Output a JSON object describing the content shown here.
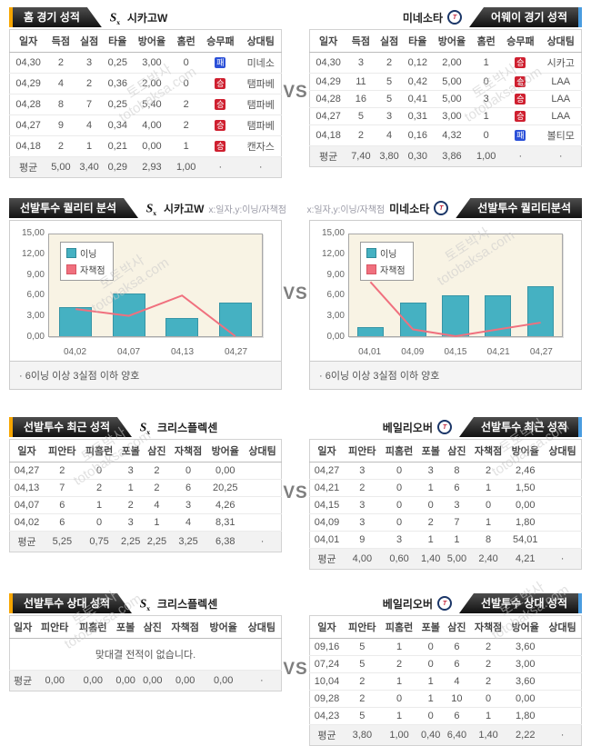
{
  "page": {
    "vs_label": "VS"
  },
  "colors": {
    "accent_left": "#f7a600",
    "accent_right": "#4a9de0",
    "bar": "#45b1c2",
    "line": "#f0707e",
    "win_badge": "#cf2030",
    "loss_badge": "#2b50d8"
  },
  "watermark": {
    "line1": "토토박사",
    "line2": "totobaksa.com"
  },
  "logos": {
    "left": "chicago-whitesox",
    "right": "minnesota-twins",
    "twins_initial": "T"
  },
  "sections": {
    "s1": {
      "left_title": "홈 경기 성적",
      "right_title": "어웨이 경기 성적",
      "left_team": "시카고W",
      "right_team": "미네소타"
    },
    "s2": {
      "left_title": "선발투수 퀄리티 분석",
      "right_title": "선발투수 퀄리티분석",
      "left_team": "시카고W",
      "right_team": "미네소타",
      "axis_caption": "x:일자,y:이닝/자책점",
      "note": "· 6이닝 이상 3실점 이하 양호"
    },
    "s3": {
      "left_title": "선발투수 최근 성적",
      "right_title": "선발투수 최근 성적",
      "left_player": "크리스플렉센",
      "right_player": "베일리오버"
    },
    "s4": {
      "left_title": "선발투수 상대 성적",
      "right_title": "선발투수 상대 성적",
      "left_player": "크리스플렉센",
      "right_player": "베일리오버"
    }
  },
  "tables": {
    "home": {
      "columns": [
        "일자",
        "득점",
        "실점",
        "타율",
        "방어율",
        "홈런",
        "승무패",
        "상대팀"
      ],
      "rows": [
        [
          "04,30",
          "2",
          "3",
          "0,25",
          "3,00",
          "0",
          {
            "b": "패",
            "t": "loss"
          },
          "미네소"
        ],
        [
          "04,29",
          "4",
          "2",
          "0,36",
          "2,00",
          "0",
          {
            "b": "승",
            "t": "win"
          },
          "탬파베"
        ],
        [
          "04,28",
          "8",
          "7",
          "0,25",
          "5,40",
          "2",
          {
            "b": "승",
            "t": "win"
          },
          "탬파베"
        ],
        [
          "04,27",
          "9",
          "4",
          "0,34",
          "4,00",
          "2",
          {
            "b": "승",
            "t": "win"
          },
          "탬파베"
        ],
        [
          "04,18",
          "2",
          "1",
          "0,21",
          "0,00",
          "1",
          {
            "b": "승",
            "t": "win"
          },
          "캔자스"
        ]
      ],
      "avg": [
        "평균",
        "5,00",
        "3,40",
        "0,29",
        "2,93",
        "1,00",
        "·",
        "·"
      ]
    },
    "away": {
      "columns": [
        "일자",
        "득점",
        "실점",
        "타율",
        "방어율",
        "홈런",
        "승무패",
        "상대팀"
      ],
      "rows": [
        [
          "04,30",
          "3",
          "2",
          "0,12",
          "2,00",
          "1",
          {
            "b": "승",
            "t": "win"
          },
          "시카고"
        ],
        [
          "04,29",
          "11",
          "5",
          "0,42",
          "5,00",
          "0",
          {
            "b": "승",
            "t": "win"
          },
          "LAA"
        ],
        [
          "04,28",
          "16",
          "5",
          "0,41",
          "5,00",
          "3",
          {
            "b": "승",
            "t": "win"
          },
          "LAA"
        ],
        [
          "04,27",
          "5",
          "3",
          "0,31",
          "3,00",
          "1",
          {
            "b": "승",
            "t": "win"
          },
          "LAA"
        ],
        [
          "04,18",
          "2",
          "4",
          "0,16",
          "4,32",
          "0",
          {
            "b": "패",
            "t": "loss"
          },
          "볼티모"
        ]
      ],
      "avg": [
        "평균",
        "7,40",
        "3,80",
        "0,30",
        "3,86",
        "1,00",
        "·",
        "·"
      ]
    },
    "recent_left": {
      "columns": [
        "일자",
        "피안타",
        "피홈런",
        "포볼",
        "삼진",
        "자책점",
        "방어율",
        "상대팀"
      ],
      "rows": [
        [
          "04,27",
          "2",
          "0",
          "3",
          "2",
          "0",
          "0,00",
          ""
        ],
        [
          "04,13",
          "7",
          "2",
          "1",
          "2",
          "6",
          "20,25",
          ""
        ],
        [
          "04,07",
          "6",
          "1",
          "2",
          "4",
          "3",
          "4,26",
          ""
        ],
        [
          "04,02",
          "6",
          "0",
          "3",
          "1",
          "4",
          "8,31",
          ""
        ]
      ],
      "avg": [
        "평균",
        "5,25",
        "0,75",
        "2,25",
        "2,25",
        "3,25",
        "6,38",
        "·"
      ]
    },
    "recent_right": {
      "columns": [
        "일자",
        "피안타",
        "피홈런",
        "포볼",
        "삼진",
        "자책점",
        "방어율",
        "상대팀"
      ],
      "rows": [
        [
          "04,27",
          "3",
          "0",
          "3",
          "8",
          "2",
          "2,46",
          ""
        ],
        [
          "04,21",
          "2",
          "0",
          "1",
          "6",
          "1",
          "1,50",
          ""
        ],
        [
          "04,15",
          "3",
          "0",
          "0",
          "3",
          "0",
          "0,00",
          ""
        ],
        [
          "04,09",
          "3",
          "0",
          "2",
          "7",
          "1",
          "1,80",
          ""
        ],
        [
          "04,01",
          "9",
          "3",
          "1",
          "1",
          "8",
          "54,01",
          ""
        ]
      ],
      "avg": [
        "평균",
        "4,00",
        "0,60",
        "1,40",
        "5,00",
        "2,40",
        "4,21",
        "·"
      ]
    },
    "versus_left": {
      "columns": [
        "일자",
        "피안타",
        "피홈런",
        "포볼",
        "삼진",
        "자책점",
        "방어율",
        "상대팀"
      ],
      "rows": [],
      "message": "맞대결 전적이 없습니다.",
      "avg": [
        "평균",
        "0,00",
        "0,00",
        "0,00",
        "0,00",
        "0,00",
        "0,00",
        "·"
      ]
    },
    "versus_right": {
      "columns": [
        "일자",
        "피안타",
        "피홈런",
        "포볼",
        "삼진",
        "자책점",
        "방어율",
        "상대팀"
      ],
      "rows": [
        [
          "09,16",
          "5",
          "1",
          "0",
          "6",
          "2",
          "3,60",
          ""
        ],
        [
          "07,24",
          "5",
          "2",
          "0",
          "6",
          "2",
          "3,00",
          ""
        ],
        [
          "10,04",
          "2",
          "1",
          "1",
          "4",
          "2",
          "3,60",
          ""
        ],
        [
          "09,28",
          "2",
          "0",
          "1",
          "10",
          "0",
          "0,00",
          ""
        ],
        [
          "04,23",
          "5",
          "1",
          "0",
          "6",
          "1",
          "1,80",
          ""
        ]
      ],
      "avg": [
        "평균",
        "3,80",
        "1,00",
        "0,40",
        "6,40",
        "1,40",
        "2,22",
        "·"
      ]
    }
  },
  "chart_data": [
    {
      "type": "bar",
      "title": "선발투수 퀄리티 분석 - 시카고W",
      "xlabel": "일자",
      "ylabel": "이닝/자책점",
      "categories": [
        "04,02",
        "04,07",
        "04,13",
        "04,27"
      ],
      "series": [
        {
          "name": "이닝",
          "type": "bar",
          "values": [
            4.33,
            6.33,
            2.67,
            5.0
          ]
        },
        {
          "name": "자책점",
          "type": "line",
          "values": [
            4,
            3,
            6,
            0
          ]
        }
      ],
      "ylim": [
        0,
        15
      ],
      "yticks": [
        "15,00",
        "12,00",
        "9,00",
        "6,00",
        "3,00",
        "0,00"
      ],
      "grid": false,
      "legend_position": "top-left"
    },
    {
      "type": "bar",
      "title": "선발투수 퀄리티분석 - 미네소타",
      "xlabel": "일자",
      "ylabel": "이닝/자책점",
      "categories": [
        "04,01",
        "04,09",
        "04,15",
        "04,21",
        "04,27"
      ],
      "series": [
        {
          "name": "이닝",
          "type": "bar",
          "values": [
            1.33,
            5.0,
            6.0,
            6.0,
            7.33
          ]
        },
        {
          "name": "자책점",
          "type": "line",
          "values": [
            8,
            1,
            0,
            1,
            2
          ]
        }
      ],
      "ylim": [
        0,
        15
      ],
      "yticks": [
        "15,00",
        "12,00",
        "9,00",
        "6,00",
        "3,00",
        "0,00"
      ],
      "grid": false,
      "legend_position": "top-left"
    }
  ]
}
